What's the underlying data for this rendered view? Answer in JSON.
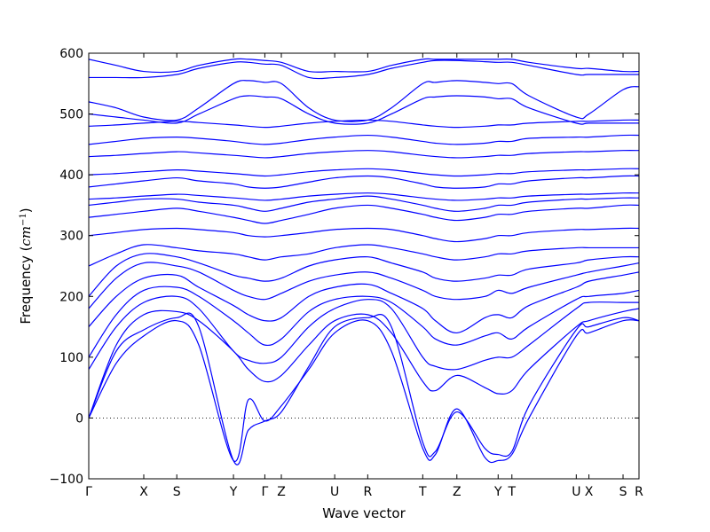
{
  "chart_data": {
    "type": "line",
    "title": "",
    "xlabel": "Wave vector",
    "ylabel_main": "Frequency (",
    "ylabel_unit": "cm",
    "ylabel_exp": "−1",
    "ylabel_close": ")",
    "ylim": [
      -100,
      600
    ],
    "yticks": [
      -100,
      0,
      100,
      200,
      300,
      400,
      500,
      600
    ],
    "zero_line": {
      "y": 0,
      "style": "dotted"
    },
    "grid": false,
    "legend": "none",
    "line_color": "#0000ff",
    "xlim": [
      0,
      100
    ],
    "xticks": [
      {
        "pos": 0,
        "label": "Γ"
      },
      {
        "pos": 10,
        "label": "X"
      },
      {
        "pos": 16,
        "label": "S"
      },
      {
        "pos": 26.3,
        "label": "Y"
      },
      {
        "pos": 32,
        "label": "Γ"
      },
      {
        "pos": 35,
        "label": "Z"
      },
      {
        "pos": 44.7,
        "label": "U"
      },
      {
        "pos": 50.7,
        "label": "R"
      },
      {
        "pos": 60.7,
        "label": "T"
      },
      {
        "pos": 66.9,
        "label": "Z"
      },
      {
        "pos": 74.4,
        "label": "Y"
      },
      {
        "pos": 76.9,
        "label": "T"
      },
      {
        "pos": 88.6,
        "label": "U"
      },
      {
        "pos": 90.9,
        "label": "X"
      },
      {
        "pos": 97.1,
        "label": "S"
      },
      {
        "pos": 100,
        "label": "R"
      }
    ],
    "series": [
      {
        "x": [
          0,
          5,
          10,
          16,
          20,
          26.3,
          29,
          32,
          35,
          40,
          44.7,
          50.7,
          55,
          60.7,
          63,
          66.9,
          72,
          74.4,
          76.9,
          80,
          88.6,
          90.9,
          97.1,
          100
        ],
        "y": [
          0,
          90,
          135,
          160,
          120,
          -70,
          30,
          -5,
          20,
          80,
          140,
          160,
          110,
          -50,
          -60,
          15,
          -65,
          -70,
          -60,
          0,
          135,
          140,
          160,
          160
        ]
      },
      {
        "x": [
          0,
          5,
          10,
          16,
          20,
          26.3,
          29,
          32,
          35,
          40,
          44.7,
          50.7,
          55,
          60.7,
          63,
          66.9,
          72,
          74.4,
          76.9,
          80,
          88.6,
          90.9,
          97.1,
          100
        ],
        "y": [
          0,
          110,
          145,
          165,
          150,
          -70,
          -20,
          -5,
          10,
          85,
          150,
          165,
          150,
          -40,
          -55,
          10,
          -50,
          -60,
          -55,
          20,
          145,
          150,
          165,
          160
        ]
      },
      {
        "x": [
          0,
          5,
          10,
          16,
          20,
          26.3,
          29,
          32,
          35,
          40,
          44.7,
          50.7,
          55,
          60.7,
          63,
          66.9,
          72,
          74.4,
          76.9,
          80,
          88.6,
          90.9,
          97.1,
          100
        ],
        "y": [
          0,
          120,
          170,
          175,
          160,
          110,
          80,
          60,
          70,
          120,
          160,
          170,
          140,
          60,
          45,
          70,
          50,
          40,
          45,
          80,
          150,
          160,
          175,
          180
        ]
      },
      {
        "x": [
          0,
          5,
          10,
          16,
          20,
          26.3,
          29,
          32,
          35,
          40,
          44.7,
          50.7,
          55,
          60.7,
          63,
          66.9,
          72,
          74.4,
          76.9,
          80,
          88.6,
          90.9,
          97.1,
          100
        ],
        "y": [
          80,
          150,
          190,
          200,
          180,
          110,
          95,
          90,
          100,
          150,
          180,
          195,
          180,
          100,
          85,
          80,
          95,
          100,
          100,
          120,
          180,
          190,
          190,
          190
        ]
      },
      {
        "x": [
          0,
          5,
          10,
          16,
          20,
          26.3,
          29,
          32,
          35,
          40,
          44.7,
          50.7,
          55,
          60.7,
          63,
          66.9,
          72,
          74.4,
          76.9,
          80,
          88.6,
          90.9,
          97.1,
          100
        ],
        "y": [
          100,
          170,
          210,
          215,
          200,
          160,
          140,
          120,
          130,
          175,
          195,
          200,
          190,
          150,
          130,
          120,
          135,
          140,
          130,
          150,
          195,
          200,
          205,
          210
        ]
      },
      {
        "x": [
          0,
          5,
          10,
          16,
          20,
          26.3,
          29,
          32,
          35,
          40,
          44.7,
          50.7,
          55,
          60.7,
          63,
          66.9,
          72,
          74.4,
          76.9,
          80,
          88.6,
          90.9,
          97.1,
          100
        ],
        "y": [
          150,
          200,
          230,
          235,
          215,
          185,
          170,
          160,
          165,
          200,
          215,
          220,
          205,
          180,
          160,
          140,
          165,
          170,
          165,
          185,
          215,
          225,
          235,
          240
        ]
      },
      {
        "x": [
          0,
          5,
          10,
          16,
          20,
          26.3,
          29,
          32,
          35,
          40,
          44.7,
          50.7,
          55,
          60.7,
          63,
          66.9,
          72,
          74.4,
          76.9,
          80,
          88.6,
          90.9,
          97.1,
          100
        ],
        "y": [
          180,
          230,
          255,
          250,
          240,
          210,
          200,
          195,
          205,
          225,
          235,
          240,
          230,
          210,
          200,
          195,
          200,
          210,
          205,
          215,
          235,
          240,
          250,
          255
        ]
      },
      {
        "x": [
          0,
          5,
          10,
          16,
          20,
          26.3,
          29,
          32,
          35,
          40,
          44.7,
          50.7,
          55,
          60.7,
          63,
          66.9,
          72,
          74.4,
          76.9,
          80,
          88.6,
          90.9,
          97.1,
          100
        ],
        "y": [
          200,
          250,
          270,
          265,
          255,
          235,
          230,
          225,
          230,
          250,
          260,
          265,
          255,
          240,
          230,
          225,
          230,
          235,
          235,
          245,
          255,
          260,
          265,
          265
        ]
      },
      {
        "x": [
          0,
          5,
          10,
          16,
          20,
          26.3,
          29,
          32,
          35,
          40,
          44.7,
          50.7,
          55,
          60.7,
          63,
          66.9,
          72,
          74.4,
          76.9,
          80,
          88.6,
          90.9,
          97.1,
          100
        ],
        "y": [
          250,
          270,
          285,
          280,
          275,
          270,
          265,
          260,
          265,
          270,
          280,
          285,
          280,
          270,
          265,
          260,
          265,
          270,
          270,
          275,
          280,
          280,
          280,
          280
        ]
      },
      {
        "x": [
          0,
          5,
          10,
          16,
          20,
          26.3,
          29,
          32,
          35,
          40,
          44.7,
          50.7,
          55,
          60.7,
          63,
          66.9,
          72,
          74.4,
          76.9,
          80,
          88.6,
          90.9,
          97.1,
          100
        ],
        "y": [
          300,
          305,
          310,
          312,
          310,
          305,
          300,
          298,
          300,
          305,
          310,
          312,
          310,
          300,
          295,
          290,
          295,
          300,
          300,
          305,
          310,
          310,
          312,
          312
        ]
      },
      {
        "x": [
          0,
          5,
          10,
          16,
          20,
          26.3,
          29,
          32,
          35,
          40,
          44.7,
          50.7,
          55,
          60.7,
          63,
          66.9,
          72,
          74.4,
          76.9,
          80,
          88.6,
          90.9,
          97.1,
          100
        ],
        "y": [
          330,
          335,
          340,
          345,
          340,
          330,
          325,
          320,
          325,
          335,
          345,
          350,
          345,
          335,
          330,
          325,
          330,
          335,
          335,
          340,
          345,
          345,
          350,
          350
        ]
      },
      {
        "x": [
          0,
          5,
          10,
          16,
          20,
          26.3,
          29,
          32,
          35,
          40,
          44.7,
          50.7,
          55,
          60.7,
          63,
          66.9,
          72,
          74.4,
          76.9,
          80,
          88.6,
          90.9,
          97.1,
          100
        ],
        "y": [
          350,
          355,
          360,
          360,
          355,
          350,
          345,
          340,
          345,
          355,
          360,
          365,
          360,
          350,
          345,
          340,
          345,
          350,
          350,
          355,
          360,
          360,
          362,
          362
        ]
      },
      {
        "x": [
          0,
          5,
          10,
          16,
          20,
          26.3,
          29,
          32,
          35,
          40,
          44.7,
          50.7,
          55,
          60.7,
          63,
          66.9,
          72,
          74.4,
          76.9,
          80,
          88.6,
          90.9,
          97.1,
          100
        ],
        "y": [
          360,
          362,
          365,
          368,
          366,
          362,
          360,
          358,
          360,
          365,
          368,
          370,
          368,
          362,
          360,
          358,
          360,
          362,
          362,
          365,
          368,
          368,
          370,
          370
        ]
      },
      {
        "x": [
          0,
          5,
          10,
          16,
          20,
          26.3,
          29,
          32,
          35,
          40,
          44.7,
          50.7,
          55,
          60.7,
          63,
          66.9,
          72,
          74.4,
          76.9,
          80,
          88.6,
          90.9,
          97.1,
          100
        ],
        "y": [
          380,
          385,
          390,
          395,
          390,
          385,
          380,
          378,
          380,
          388,
          395,
          398,
          395,
          385,
          380,
          378,
          380,
          385,
          385,
          390,
          395,
          395,
          398,
          398
        ]
      },
      {
        "x": [
          0,
          5,
          10,
          16,
          20,
          26.3,
          29,
          32,
          35,
          40,
          44.7,
          50.7,
          55,
          60.7,
          63,
          66.9,
          72,
          74.4,
          76.9,
          80,
          88.6,
          90.9,
          97.1,
          100
        ],
        "y": [
          400,
          402,
          405,
          408,
          406,
          402,
          400,
          398,
          400,
          405,
          408,
          410,
          408,
          402,
          400,
          398,
          400,
          402,
          402,
          405,
          408,
          408,
          410,
          410
        ]
      },
      {
        "x": [
          0,
          5,
          10,
          16,
          20,
          26.3,
          29,
          32,
          35,
          40,
          44.7,
          50.7,
          55,
          60.7,
          63,
          66.9,
          72,
          74.4,
          76.9,
          80,
          88.6,
          90.9,
          97.1,
          100
        ],
        "y": [
          430,
          432,
          435,
          438,
          436,
          432,
          430,
          428,
          430,
          435,
          438,
          440,
          438,
          432,
          430,
          428,
          430,
          432,
          432,
          435,
          438,
          438,
          440,
          440
        ]
      },
      {
        "x": [
          0,
          5,
          10,
          16,
          20,
          26.3,
          29,
          32,
          35,
          40,
          44.7,
          50.7,
          55,
          60.7,
          63,
          66.9,
          72,
          74.4,
          76.9,
          80,
          88.6,
          90.9,
          97.1,
          100
        ],
        "y": [
          450,
          455,
          460,
          462,
          460,
          455,
          452,
          450,
          452,
          458,
          462,
          465,
          462,
          455,
          452,
          450,
          452,
          455,
          455,
          460,
          462,
          462,
          465,
          465
        ]
      },
      {
        "x": [
          0,
          5,
          10,
          16,
          20,
          26.3,
          29,
          32,
          35,
          40,
          44.7,
          50.7,
          55,
          60.7,
          63,
          66.9,
          72,
          74.4,
          76.9,
          80,
          88.6,
          90.9,
          97.1,
          100
        ],
        "y": [
          480,
          482,
          485,
          488,
          486,
          482,
          480,
          478,
          480,
          485,
          488,
          490,
          488,
          482,
          480,
          478,
          480,
          482,
          482,
          485,
          488,
          488,
          490,
          490
        ]
      },
      {
        "x": [
          0,
          5,
          10,
          16,
          20,
          26.3,
          29,
          32,
          35,
          40,
          44.7,
          50.7,
          55,
          60.7,
          63,
          66.9,
          72,
          74.4,
          76.9,
          80,
          88.6,
          90.9,
          97.1,
          100
        ],
        "y": [
          500,
          495,
          490,
          485,
          500,
          525,
          530,
          528,
          525,
          500,
          485,
          485,
          500,
          525,
          528,
          530,
          528,
          525,
          525,
          510,
          485,
          485,
          485,
          485
        ]
      },
      {
        "x": [
          0,
          5,
          10,
          16,
          20,
          26.3,
          29,
          32,
          35,
          40,
          44.7,
          50.7,
          55,
          60.7,
          63,
          66.9,
          72,
          74.4,
          76.9,
          80,
          88.6,
          90.9,
          97.1,
          100
        ],
        "y": [
          520,
          510,
          495,
          490,
          510,
          550,
          555,
          552,
          550,
          510,
          490,
          490,
          510,
          550,
          552,
          555,
          552,
          550,
          550,
          530,
          495,
          500,
          540,
          545
        ]
      },
      {
        "x": [
          0,
          5,
          10,
          16,
          20,
          26.3,
          29,
          32,
          35,
          40,
          44.7,
          50.7,
          55,
          60.7,
          63,
          66.9,
          72,
          74.4,
          76.9,
          80,
          88.6,
          90.9,
          97.1,
          100
        ],
        "y": [
          560,
          560,
          560,
          565,
          575,
          585,
          585,
          582,
          580,
          560,
          560,
          565,
          575,
          585,
          588,
          588,
          586,
          585,
          585,
          580,
          565,
          565,
          565,
          565
        ]
      },
      {
        "x": [
          0,
          5,
          10,
          16,
          20,
          26.3,
          29,
          32,
          35,
          40,
          44.7,
          50.7,
          55,
          60.7,
          63,
          66.9,
          72,
          74.4,
          76.9,
          80,
          88.6,
          90.9,
          97.1,
          100
        ],
        "y": [
          590,
          580,
          570,
          570,
          580,
          590,
          590,
          588,
          585,
          570,
          570,
          570,
          580,
          590,
          590,
          590,
          590,
          590,
          590,
          585,
          575,
          575,
          570,
          570
        ]
      }
    ]
  }
}
